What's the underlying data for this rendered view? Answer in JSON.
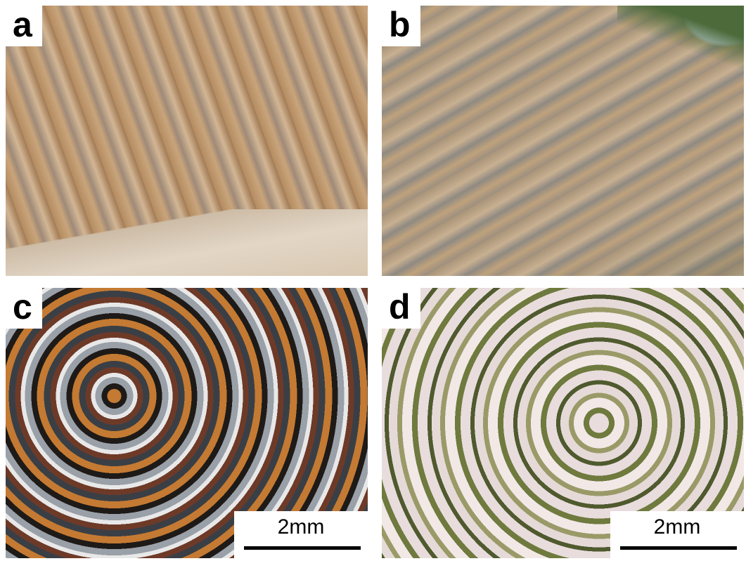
{
  "panels": [
    {
      "label": "a"
    },
    {
      "label": "b"
    },
    {
      "label": "c",
      "scale_bar": "2mm"
    },
    {
      "label": "d",
      "scale_bar": "2mm"
    }
  ]
}
